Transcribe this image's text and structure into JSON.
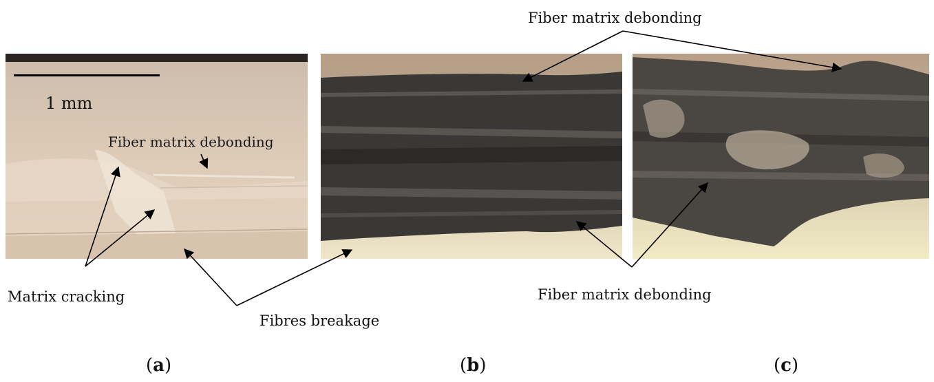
{
  "scale_bar": {
    "label": "1 mm"
  },
  "annotations": {
    "fiber_debonding_top": "Fiber matrix debonding",
    "fiber_debonding_inset_a": "Fiber matrix debonding",
    "matrix_cracking": "Matrix cracking",
    "fibres_breakage": "Fibres breakage",
    "fiber_debonding_bottom": "Fiber matrix debonding"
  },
  "subfigure_labels": {
    "a": "a",
    "b": "b",
    "c": "c"
  },
  "colors": {
    "panel_a_resin": "#d9c8b6",
    "panel_bc_fiber": "#3c3a38",
    "background_beige": "#e8dcc4",
    "arrow": "#000000"
  }
}
